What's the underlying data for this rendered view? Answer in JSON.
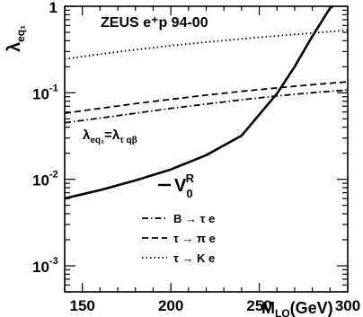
{
  "chart_data": {
    "type": "line",
    "annotation_title": "ZEUS e⁺p 94-00",
    "ylabel": "λ",
    "ylabel_sub": "eq₁",
    "xlabel": "M",
    "xlabel_sub": "LQ",
    "xlabel_unit": "(GeV)",
    "xlim": [
      140,
      300
    ],
    "ylim": [
      0.0005,
      1
    ],
    "y_scale": "log",
    "x_ticks": [
      150,
      200,
      250,
      300
    ],
    "y_ticks": [
      {
        "value": 0.001,
        "base": "10",
        "exp": "-3"
      },
      {
        "value": 0.01,
        "base": "10",
        "exp": "-2"
      },
      {
        "value": 0.1,
        "base": "10",
        "exp": "-1"
      },
      {
        "value": 1,
        "base": "1",
        "exp": ""
      }
    ],
    "coupling_label": {
      "lhs": "λ",
      "lhs_sub": "eq₁",
      "eq": "=",
      "rhs": "λ",
      "rhs_sub": "τ qβ"
    },
    "series": [
      {
        "name": "V₀ᴿ",
        "style": "solid",
        "color": "#000000",
        "x": [
          140,
          160,
          180,
          200,
          220,
          240,
          260,
          270,
          280,
          290,
          293
        ],
        "y": [
          0.006,
          0.0075,
          0.0097,
          0.013,
          0.019,
          0.032,
          0.098,
          0.2,
          0.45,
          0.95,
          1.05
        ]
      },
      {
        "name": "B → τ e",
        "style": "dashdot",
        "color": "#000000",
        "x": [
          140,
          160,
          180,
          200,
          220,
          240,
          260,
          280,
          300
        ],
        "y": [
          0.045,
          0.051,
          0.058,
          0.066,
          0.074,
          0.083,
          0.092,
          0.1,
          0.108
        ]
      },
      {
        "name": "τ → π e",
        "style": "dashed",
        "color": "#000000",
        "x": [
          140,
          160,
          180,
          200,
          220,
          240,
          260,
          280,
          300
        ],
        "y": [
          0.058,
          0.066,
          0.075,
          0.084,
          0.094,
          0.104,
          0.114,
          0.124,
          0.134
        ]
      },
      {
        "name": "τ → K e",
        "style": "dotted",
        "color": "#000000",
        "x": [
          140,
          160,
          180,
          200,
          220,
          240,
          260,
          280,
          300
        ],
        "y": [
          0.245,
          0.28,
          0.315,
          0.35,
          0.385,
          0.42,
          0.455,
          0.49,
          0.53
        ]
      }
    ],
    "legend_entries": [
      {
        "text": "B → τ e",
        "style": "dashdot"
      },
      {
        "text": "τ → π e",
        "style": "dashed"
      },
      {
        "text": "τ → K e",
        "style": "dotted"
      }
    ],
    "grid": false
  }
}
